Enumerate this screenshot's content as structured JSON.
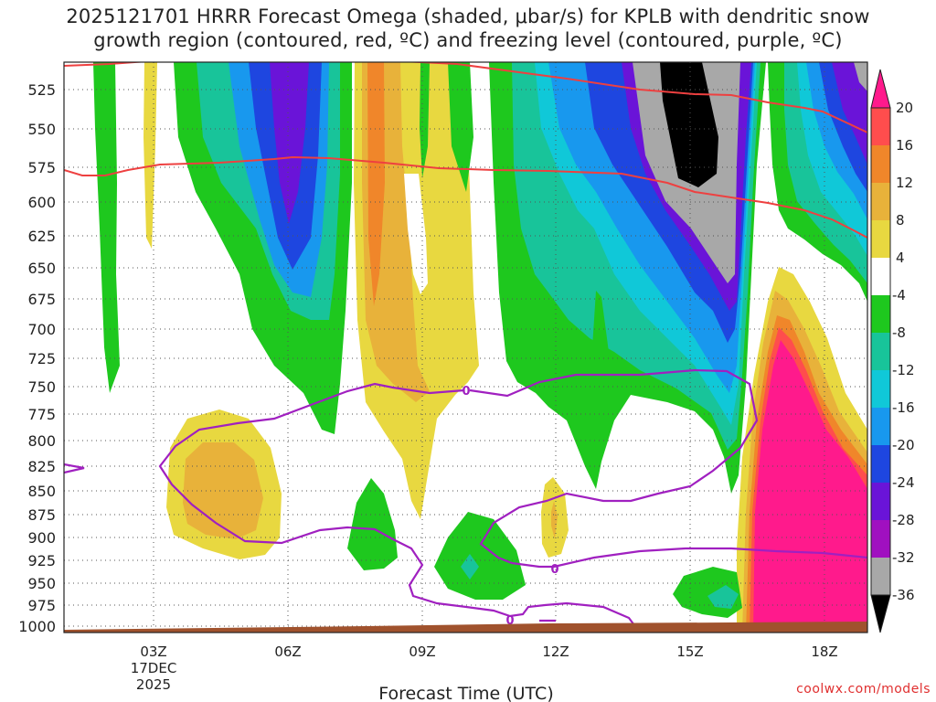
{
  "title_line1": "2025121701 HRRR Forecast Omega (shaded, μbar/s) for KPLB with dendritic snow",
  "title_line2": "growth region (contoured, red, ºC) and freezing level (contoured, purple, ºC)",
  "credit": "coolwx.com/models",
  "chart_data": {
    "type": "heatmap",
    "title": "2025121701 HRRR Forecast Omega (shaded, μbar/s) for KPLB with dendritic snow growth region (contoured, red, ºC) and freezing level (contoured, purple, ºC)",
    "xlabel": "Forecast Time (UTC)",
    "x_ticks": [
      "03Z",
      "06Z",
      "09Z",
      "12Z",
      "15Z",
      "18Z"
    ],
    "x_date_line1": "17DEC",
    "x_date_line2": "2025",
    "y_ticks": [
      525,
      550,
      575,
      600,
      625,
      650,
      675,
      700,
      725,
      750,
      775,
      800,
      825,
      850,
      875,
      900,
      925,
      950,
      975,
      1000
    ],
    "y_scale": "pressure (hPa), decreasing upward",
    "grid": "dotted",
    "colorbar": {
      "ticks": [
        "20",
        "16",
        "12",
        "8",
        "4",
        "-4",
        "-8",
        "-12",
        "-16",
        "-20",
        "-24",
        "-28",
        "-32",
        "-36"
      ],
      "colors": [
        "#ff1a8c",
        "#ff4d4d",
        "#f0862a",
        "#e8b23a",
        "#e8d840",
        "#ffffff",
        "#1ec81e",
        "#18c49a",
        "#10c8d8",
        "#1898ee",
        "#1e46e0",
        "#6a14d8",
        "#a010c0",
        "#a8a8a8",
        "#000000"
      ]
    },
    "contours": {
      "dendritic_growth_region": {
        "color": "#ee4040"
      },
      "freezing_level": {
        "color": "#a020c0",
        "label": "0"
      }
    },
    "ground_color": "#a0522d"
  }
}
